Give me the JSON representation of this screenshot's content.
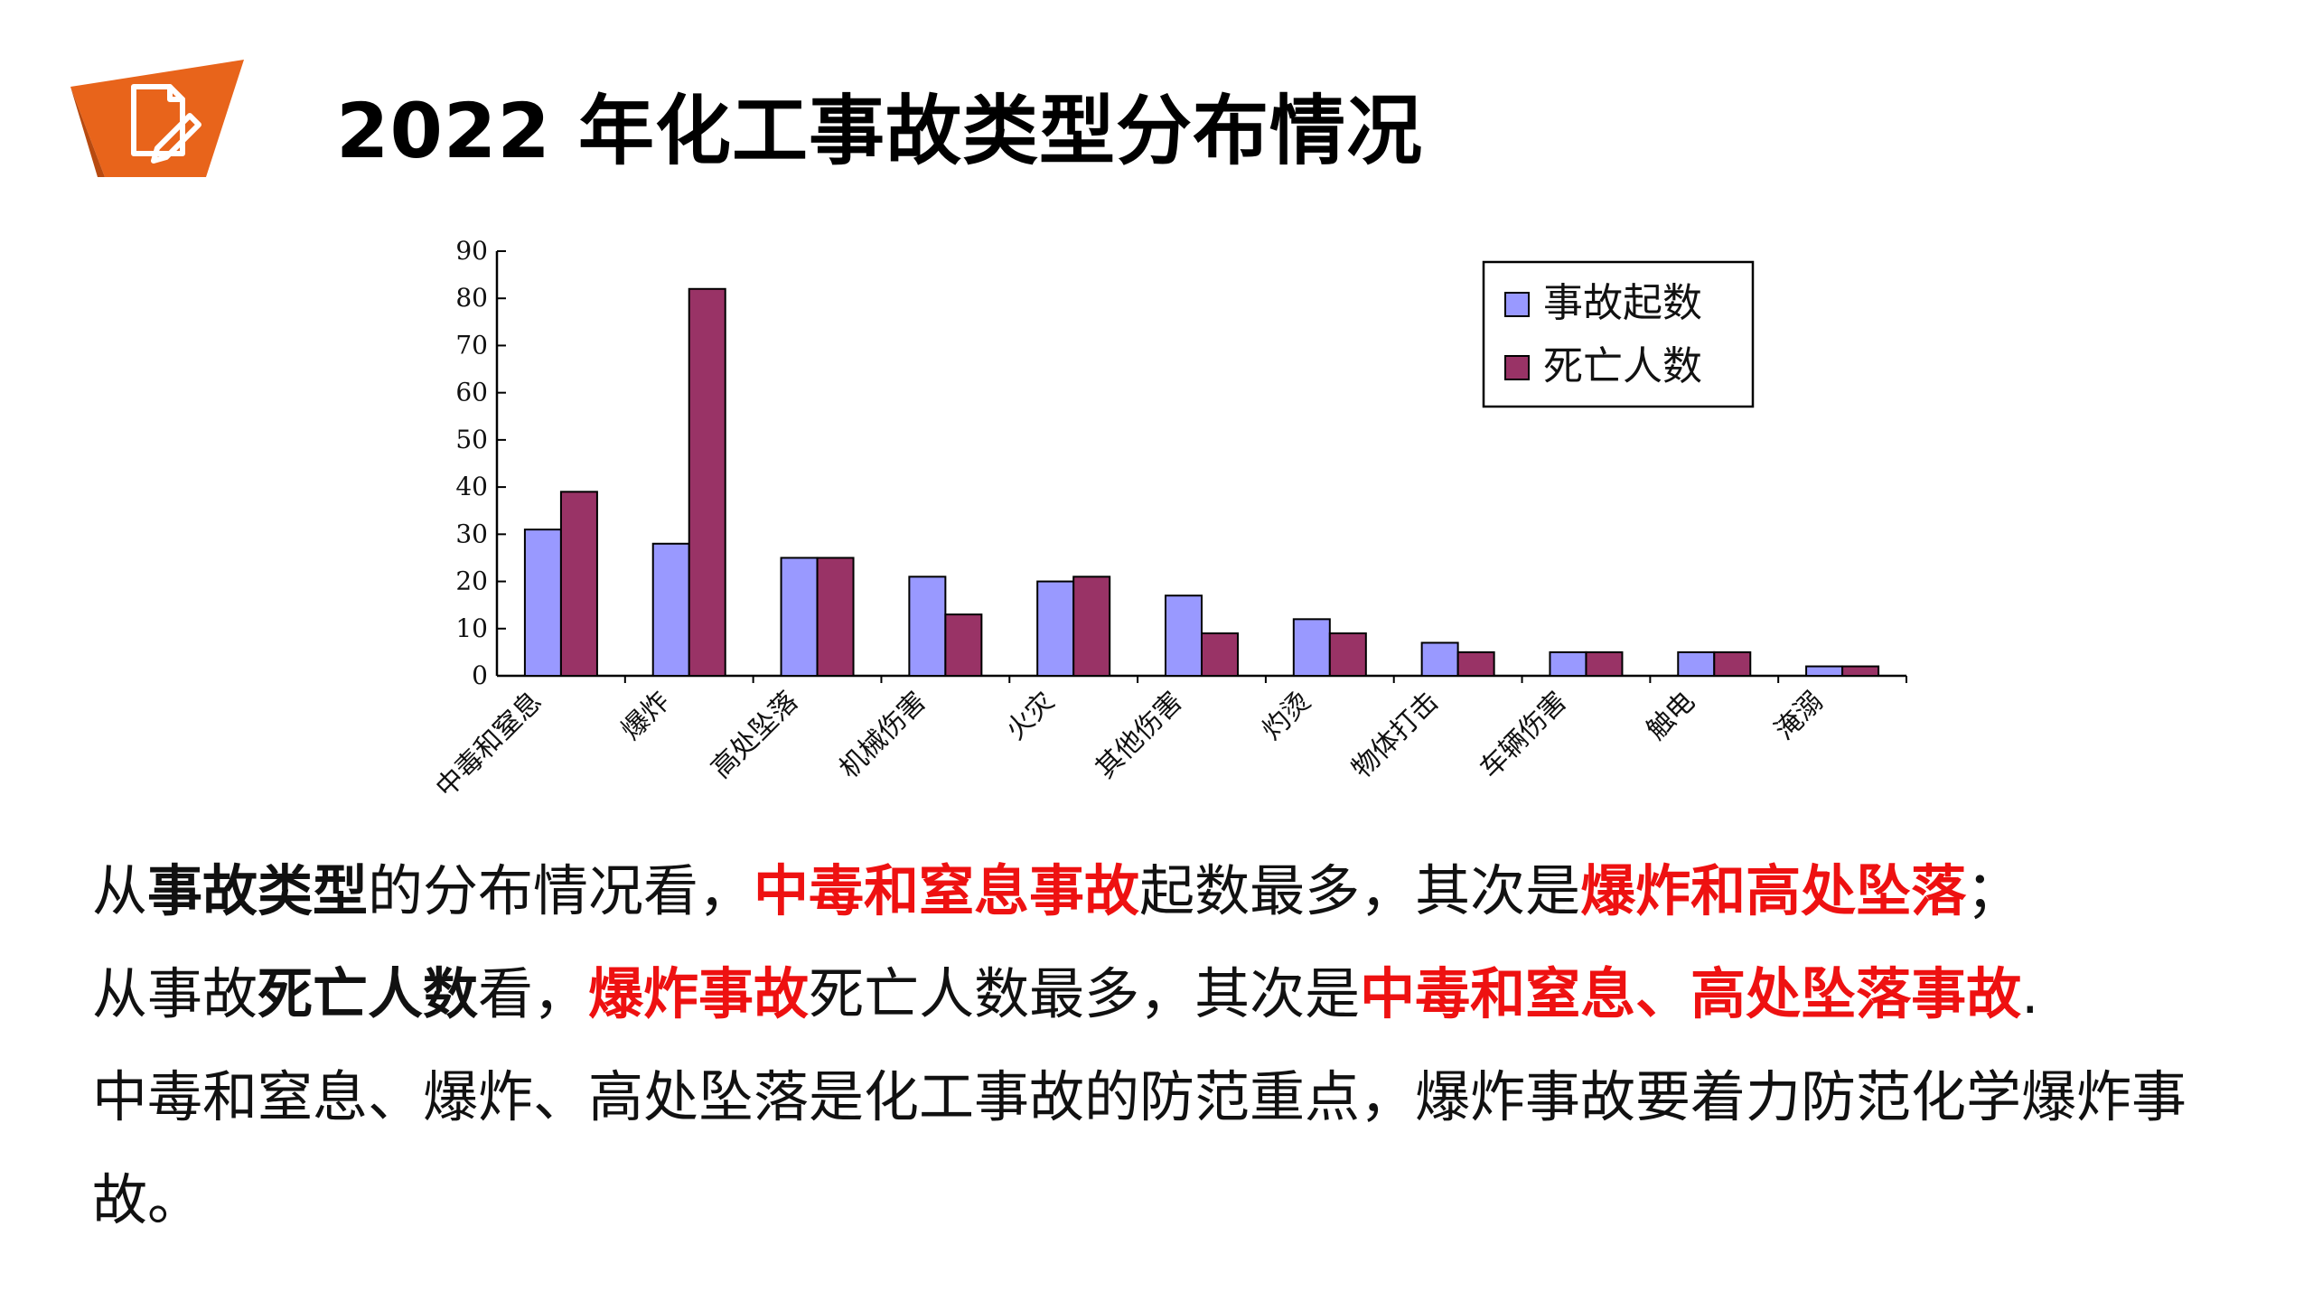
{
  "page": {
    "title": "2022 年化工事故类型分布情况",
    "accent_color": "#e8641b",
    "logo_icon": "document-edit-icon"
  },
  "chart_data": {
    "type": "bar",
    "title": "",
    "xlabel": "",
    "ylabel": "",
    "ylim": [
      0,
      90
    ],
    "yticks": [
      0,
      10,
      20,
      30,
      40,
      50,
      60,
      70,
      80,
      90
    ],
    "grid": false,
    "legend_position": "top-right",
    "categories": [
      "中毒和窒息",
      "爆炸",
      "高处坠落",
      "机械伤害",
      "火灾",
      "其他伤害",
      "灼烫",
      "物体打击",
      "车辆伤害",
      "触电",
      "淹溺"
    ],
    "series": [
      {
        "name": "事故起数",
        "color": "#9999ff",
        "values": [
          31,
          28,
          25,
          21,
          20,
          17,
          12,
          7,
          5,
          5,
          2
        ]
      },
      {
        "name": "死亡人数",
        "color": "#993366",
        "values": [
          39,
          82,
          25,
          13,
          21,
          9,
          9,
          5,
          5,
          5,
          2
        ]
      }
    ]
  },
  "paragraphs": {
    "p1": {
      "t1": "从",
      "t2": "事故类型",
      "t3": "的分布情况看，",
      "t4": "中毒和窒息事故",
      "t5": "起数最多，其次是",
      "t6": "爆炸和高处坠落",
      "t7": "；"
    },
    "p2": {
      "t1": "从事故",
      "t2": "死亡人数",
      "t3": "看，",
      "t4": "爆炸事故",
      "t5": "死亡人数最多，其次是",
      "t6": "中毒和窒息、高处坠落事故",
      "t7": "."
    },
    "p3": {
      "line1": "中毒和窒息、爆炸、高处坠落是化工事故的防范重点，爆炸事故要着力防范化学爆炸事",
      "line2": "故。"
    }
  }
}
